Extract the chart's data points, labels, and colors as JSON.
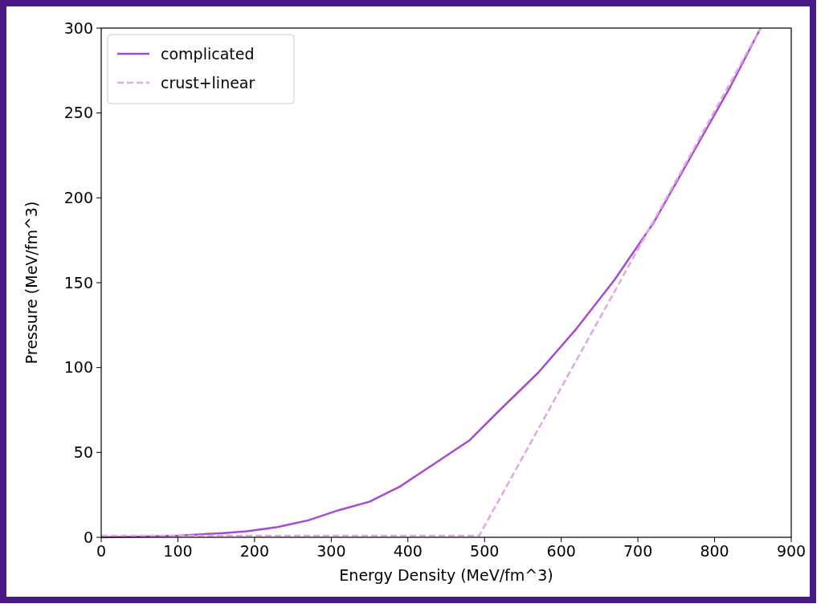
{
  "chart_data": {
    "type": "line",
    "xlabel": "Energy Density (MeV/fm^3)",
    "ylabel": "Pressure (MeV/fm^3)",
    "xlim": [
      0,
      900
    ],
    "ylim": [
      0,
      300
    ],
    "xticks": [
      0,
      100,
      200,
      300,
      400,
      500,
      600,
      700,
      800,
      900
    ],
    "yticks": [
      0,
      50,
      100,
      150,
      200,
      250,
      300
    ],
    "legend": "top left",
    "grid": false,
    "series": [
      {
        "name": "complicated",
        "color": "#a64ad4",
        "line_style": "solid",
        "x": [
          0,
          50,
          100,
          160,
          190,
          230,
          270,
          310,
          350,
          390,
          430,
          480,
          520,
          570,
          620,
          670,
          720,
          770,
          820,
          860
        ],
        "values": [
          0,
          0.3,
          1,
          2.5,
          3.5,
          6,
          10,
          16,
          21,
          30,
          42,
          57,
          75,
          97,
          123,
          152,
          185,
          225,
          265,
          300
        ]
      },
      {
        "name": "crust+linear",
        "color": "#e2a6e2",
        "line_style": "dashed",
        "x": [
          0,
          493,
          860
        ],
        "values": [
          1,
          1,
          300
        ]
      }
    ]
  }
}
